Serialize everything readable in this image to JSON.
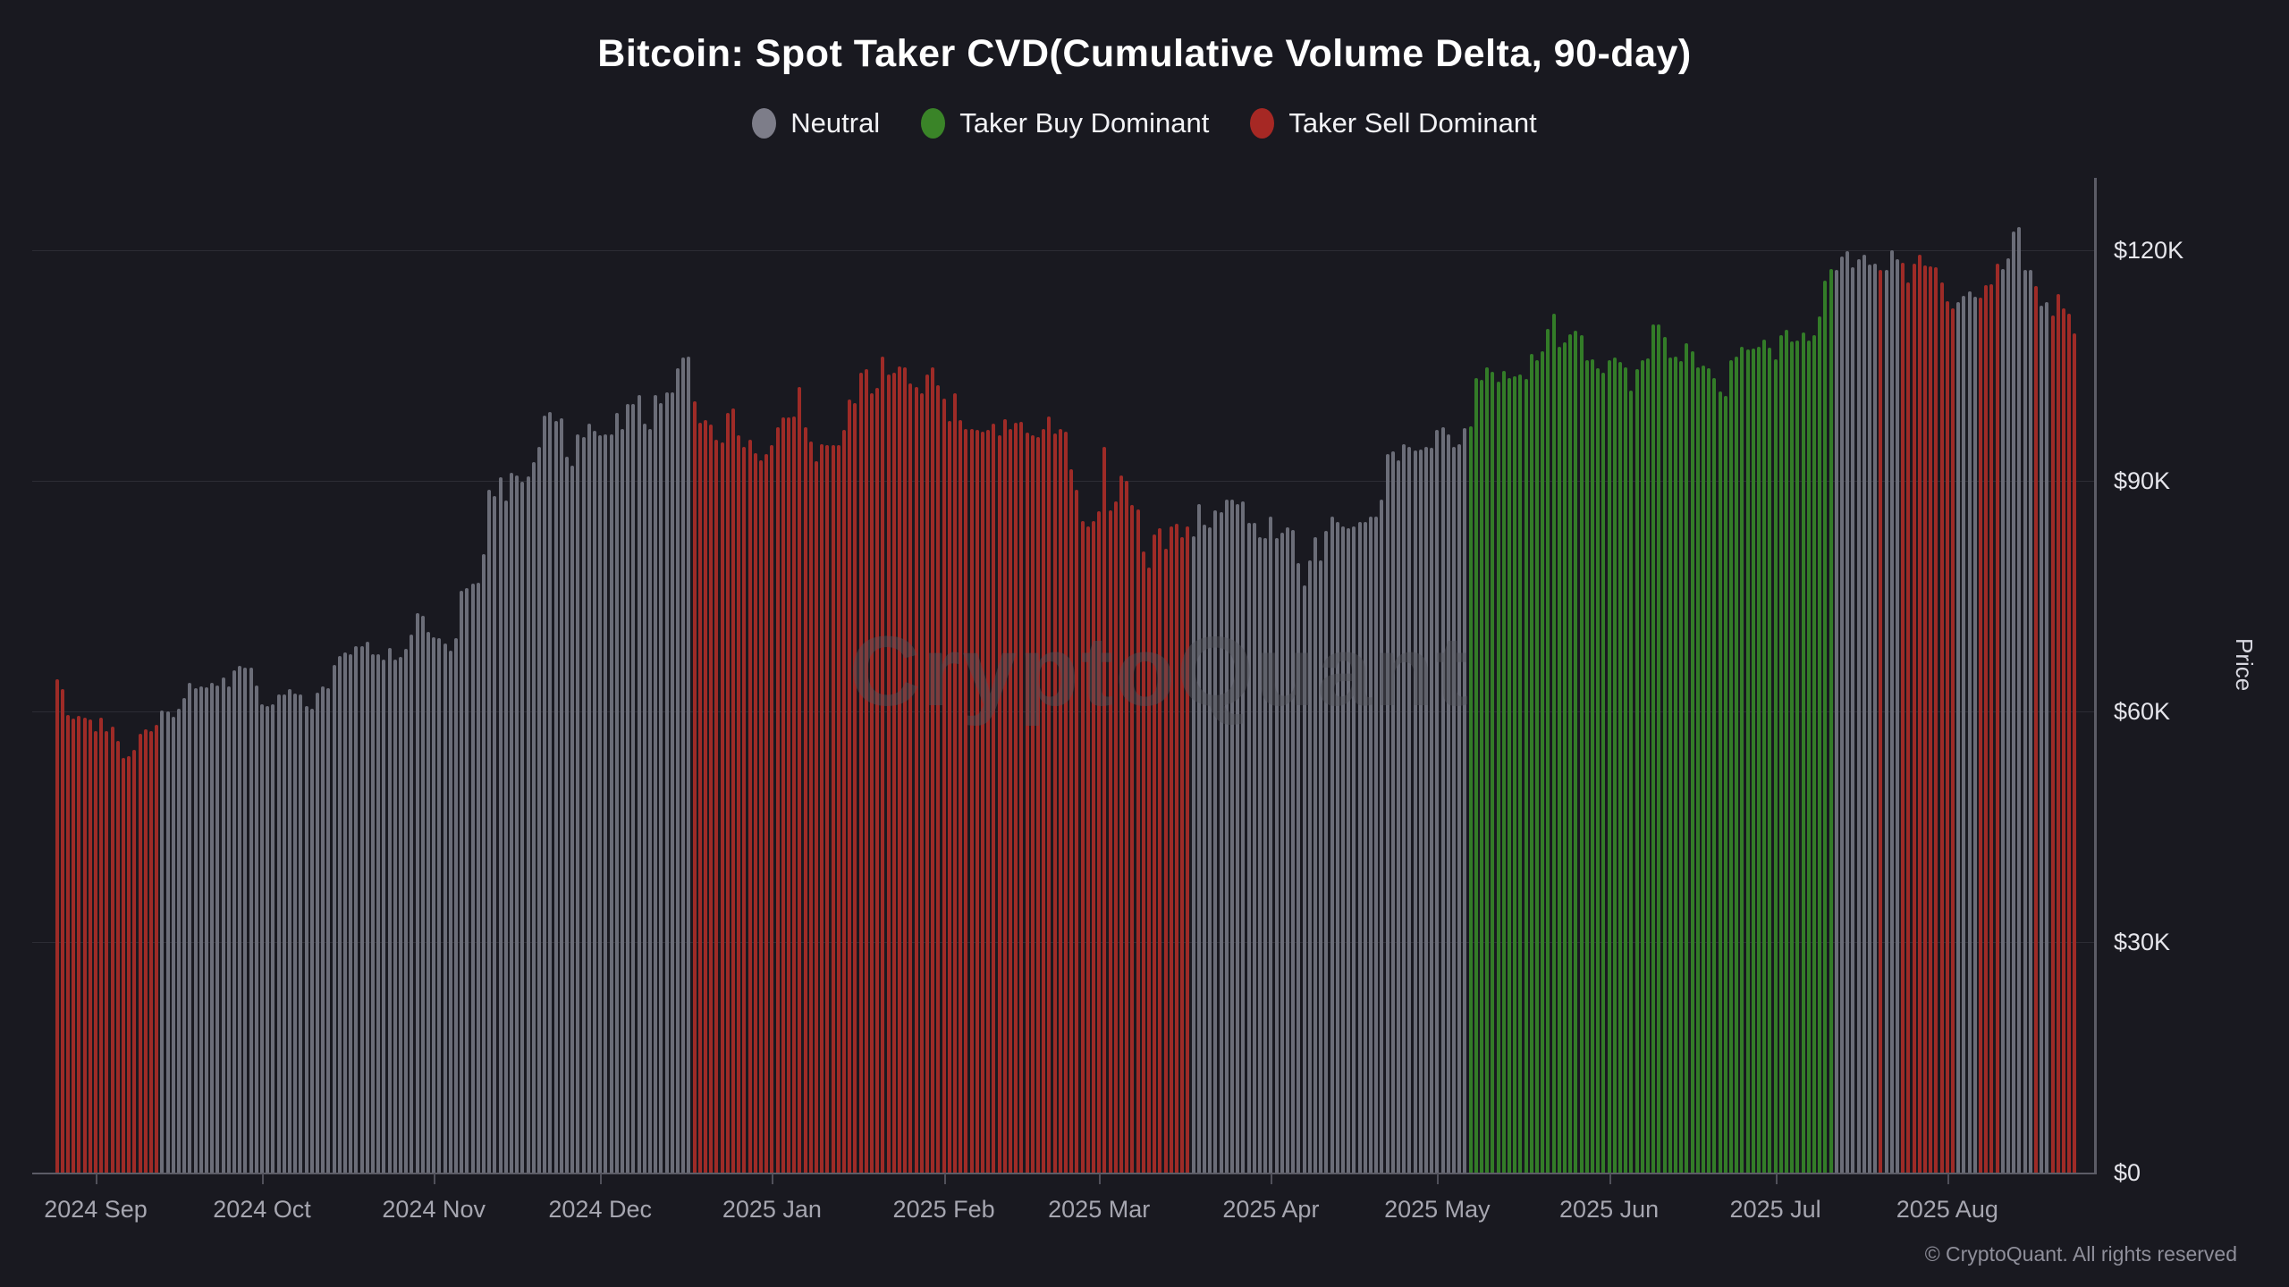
{
  "header": {
    "title": "Bitcoin: Spot Taker CVD(Cumulative Volume Delta, 90-day)"
  },
  "legend": {
    "items": [
      {
        "key": "neutral",
        "label": "Neutral"
      },
      {
        "key": "buy",
        "label": "Taker Buy Dominant"
      },
      {
        "key": "sell",
        "label": "Taker Sell Dominant"
      }
    ]
  },
  "colors": {
    "background": "#191920",
    "bar_neutral": "#6b6d78",
    "bar_buy": "#337c28",
    "bar_sell": "#9e2b27",
    "legend_neutral": "#7d7d89",
    "legend_buy": "#3a8428",
    "legend_sell": "#a62824",
    "gridline": "#2c2c34",
    "axis": "#5c5c66"
  },
  "watermark": {
    "text": "CryptoQuant"
  },
  "footer": {
    "copyright": "© CryptoQuant. All rights reserved"
  },
  "y_axis": {
    "label": "Price",
    "ticks": [
      {
        "label": "$0",
        "value_k": 0
      },
      {
        "label": "$30K",
        "value_k": 30
      },
      {
        "label": "$60K",
        "value_k": 60
      },
      {
        "label": "$90K",
        "value_k": 90
      },
      {
        "label": "$120K",
        "value_k": 120
      }
    ]
  },
  "x_axis": {
    "months": [
      {
        "label": "2024 Sep",
        "day": 7
      },
      {
        "label": "2024 Oct",
        "day": 37
      },
      {
        "label": "2024 Nov",
        "day": 68
      },
      {
        "label": "2024 Dec",
        "day": 98
      },
      {
        "label": "2025 Jan",
        "day": 129
      },
      {
        "label": "2025 Feb",
        "day": 160
      },
      {
        "label": "2025 Mar",
        "day": 188
      },
      {
        "label": "2025 Apr",
        "day": 219
      },
      {
        "label": "2025 May",
        "day": 249
      },
      {
        "label": "2025 Jun",
        "day": 280
      },
      {
        "label": "2025 Jul",
        "day": 310
      },
      {
        "label": "2025 Aug",
        "day": 341
      }
    ]
  },
  "chart_data": {
    "type": "bar",
    "title": "Bitcoin: Spot Taker CVD(Cumulative Volume Delta, 90-day)",
    "xlabel": "",
    "ylabel": "Price",
    "unit": "USD thousands ($K)",
    "ylim_k": [
      0,
      129
    ],
    "grid": "horizontal",
    "legend_position": "top",
    "frequency": "daily",
    "start_date": "2024-08-25",
    "legend_categories": {
      "neutral": "Neutral",
      "buy": "Taker Buy Dominant",
      "sell": "Taker Sell Dominant"
    },
    "category_runs": [
      {
        "category": "sell",
        "days": 19
      },
      {
        "category": "neutral",
        "days": 96
      },
      {
        "category": "sell",
        "days": 90
      },
      {
        "category": "neutral",
        "days": 50
      },
      {
        "category": "buy",
        "days": 66
      },
      {
        "category": "neutral",
        "days": 8
      },
      {
        "category": "sell",
        "days": 1
      },
      {
        "category": "neutral",
        "days": 3
      },
      {
        "category": "sell",
        "days": 10
      },
      {
        "category": "neutral",
        "days": 4
      },
      {
        "category": "sell",
        "days": 4
      },
      {
        "category": "neutral",
        "days": 6
      },
      {
        "category": "sell",
        "days": 1
      },
      {
        "category": "neutral",
        "days": 2
      },
      {
        "category": "sell",
        "days": 5
      }
    ],
    "month_order": [
      "2024-08",
      "2024-09",
      "2024-10",
      "2024-11",
      "2024-12",
      "2025-01",
      "2025-02",
      "2025-03",
      "2025-04",
      "2025-05",
      "2025-06",
      "2025-07",
      "2025-08"
    ],
    "prices_k_by_month": {
      "2024-08": [
        64.2,
        62.9,
        59.5,
        59.1,
        59.4,
        59.2,
        58.9
      ],
      "2024-09": [
        57.4,
        59.2,
        57.5,
        58.0,
        56.2,
        53.9,
        54.2,
        55.0,
        57.1,
        57.7,
        57.4,
        58.2,
        60.1,
        60.0,
        59.3,
        60.4,
        61.8,
        63.7,
        63.0,
        63.3,
        63.1,
        63.7,
        63.4,
        64.4,
        63.3,
        65.3,
        65.9,
        65.7,
        65.7,
        63.4
      ],
      "2024-10": [
        60.9,
        60.7,
        60.9,
        62.2,
        62.2,
        62.9,
        62.3,
        62.2,
        60.7,
        60.4,
        62.5,
        63.3,
        63.0,
        66.1,
        67.2,
        67.7,
        67.5,
        68.5,
        68.5,
        69.1,
        67.5,
        67.5,
        66.7,
        68.3,
        66.7,
        67.1,
        68.1,
        70.0,
        72.8,
        72.4,
        70.3
      ],
      "2024-11": [
        69.6,
        69.5,
        68.8,
        67.9,
        69.5,
        75.7,
        76.1,
        76.6,
        76.8,
        80.5,
        88.8,
        88.0,
        90.5,
        87.4,
        91.1,
        90.7,
        89.9,
        90.6,
        92.4,
        94.4,
        98.5,
        99.0,
        97.8,
        98.1,
        93.1,
        92.0,
        96.0,
        95.7,
        97.5,
        96.5
      ],
      "2024-12": [
        95.9,
        96.0,
        96.1,
        98.8,
        96.7,
        100.0,
        100.0,
        101.2,
        97.4,
        96.7,
        101.2,
        100.1,
        101.5,
        101.5,
        104.6,
        106.1,
        106.2,
        100.3,
        97.6,
        97.9,
        97.3,
        95.3,
        95.0,
        98.8,
        99.4,
        95.9,
        94.4,
        95.4,
        93.6,
        92.7,
        93.5
      ],
      "2025-01": [
        94.7,
        97.0,
        98.2,
        98.3,
        98.4,
        102.2,
        97.0,
        95.1,
        92.6,
        94.8,
        94.7,
        94.6,
        94.6,
        96.6,
        100.6,
        100.1,
        104.1,
        104.5,
        101.4,
        102.1,
        106.2,
        103.8,
        104.1,
        104.9,
        104.8,
        102.7,
        102.2,
        101.4,
        103.8,
        104.8,
        102.5
      ],
      "2025-02": [
        100.7,
        97.8,
        101.4,
        97.9,
        96.7,
        96.7,
        96.6,
        96.4,
        96.6,
        97.5,
        95.9,
        98.0,
        96.7,
        97.6,
        97.7,
        96.3,
        95.9,
        95.7,
        96.7,
        98.4,
        96.2,
        96.7,
        96.4,
        91.5,
        88.8,
        84.8,
        84.1,
        84.8
      ],
      "2025-03": [
        86.1,
        94.4,
        86.2,
        87.3,
        90.7,
        90.0,
        86.9,
        86.3,
        80.8,
        78.7,
        83.0,
        83.8,
        81.2,
        84.1,
        84.4,
        82.7,
        84.1,
        82.8,
        87.0,
        84.3,
        83.9,
        86.2,
        85.9,
        87.6,
        87.6,
        87.0,
        87.3,
        84.5,
        84.5,
        82.7,
        82.6
      ],
      "2025-04": [
        85.3,
        82.6,
        83.3,
        83.9,
        83.6,
        79.3,
        76.4,
        79.7,
        82.7,
        79.7,
        83.5,
        85.4,
        84.6,
        84.1,
        83.8,
        84.1,
        84.7,
        84.6,
        85.3,
        85.3,
        87.6,
        93.5,
        93.8,
        92.7,
        94.8,
        94.4,
        93.9,
        94.1,
        94.4,
        94.3
      ],
      "2025-05": [
        96.6,
        97.0,
        96.0,
        94.4,
        94.8,
        96.9,
        97.1,
        103.4,
        103.1,
        104.8,
        104.2,
        102.9,
        104.3,
        103.4,
        103.6,
        103.8,
        103.3,
        106.5,
        105.7,
        106.9,
        109.8,
        111.8,
        107.4,
        108.0,
        109.1,
        109.5,
        109.0,
        105.7,
        105.8,
        104.7,
        104.1
      ],
      "2025-06": [
        105.7,
        106.0,
        105.5,
        104.8,
        101.7,
        104.5,
        105.7,
        105.9,
        110.4,
        110.3,
        108.7,
        106.0,
        106.2,
        105.6,
        107.9,
        106.9,
        104.8,
        105.0,
        104.7,
        103.4,
        101.6,
        101.0,
        105.7,
        106.2,
        107.4,
        107.1,
        107.2,
        107.4,
        108.4,
        107.3
      ],
      "2025-07": [
        105.8,
        108.9,
        109.7,
        108.1,
        108.3,
        109.3,
        108.2,
        109.0,
        111.4,
        116.0,
        117.6,
        117.5,
        119.2,
        119.9,
        117.8,
        118.8,
        119.4,
        118.1,
        118.2,
        117.4,
        117.5,
        120.0,
        118.8,
        118.4,
        115.8,
        118.2,
        119.4,
        118.0,
        117.9,
        117.8,
        115.8
      ],
      "2025-08": [
        113.4,
        112.5,
        113.2,
        114.1,
        114.6,
        113.9,
        113.8,
        115.5,
        115.6,
        118.3,
        117.6,
        119.0,
        122.5,
        123.0,
        117.4,
        117.5,
        115.3,
        112.8,
        113.3,
        111.5,
        114.3,
        112.4,
        111.8,
        109.2
      ]
    }
  }
}
